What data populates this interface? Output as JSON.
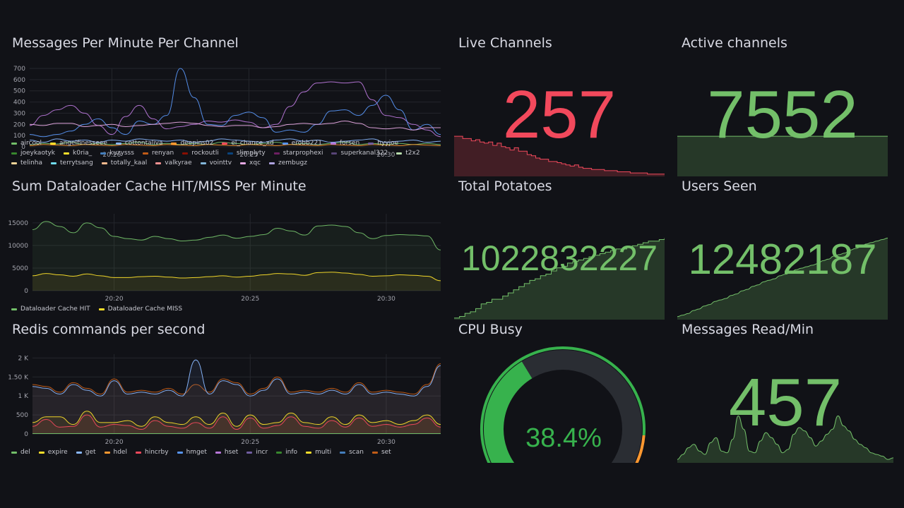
{
  "colors": {
    "green": "#73bf69",
    "red": "#f2495c",
    "gauge_bg": "#2a2d33",
    "gauge_green": "#37b24d",
    "gauge_orange": "#ff9830",
    "gauge_red": "#e02f44"
  },
  "panels": {
    "messages_per_minute": {
      "title": "Messages Per Minute Per Channel",
      "legend": [
        {
          "name": "aircool",
          "color": "#73bf69"
        },
        {
          "name": "angelfinesseee",
          "color": "#fade2a"
        },
        {
          "name": "cottontaliva",
          "color": "#8ab8ff"
        },
        {
          "name": "deepins02",
          "color": "#ff9830"
        },
        {
          "name": "el_chance_xd",
          "color": "#f2495c"
        },
        {
          "name": "erobb221",
          "color": "#5794f2"
        },
        {
          "name": "forsen",
          "color": "#b877d9"
        },
        {
          "name": "hyyjoe",
          "color": "#705da0"
        },
        {
          "name": "joeykaotyk",
          "color": "#37872d"
        },
        {
          "name": "k0ria_",
          "color": "#fade2a"
        },
        {
          "name": "kuzysss",
          "color": "#447ebc"
        },
        {
          "name": "renyan",
          "color": "#c15c17"
        },
        {
          "name": "rockoutli",
          "color": "#890f02"
        },
        {
          "name": "slimplyty",
          "color": "#0a437c"
        },
        {
          "name": "starprophexi",
          "color": "#6d1f62"
        },
        {
          "name": "superkanal322",
          "color": "#584477"
        },
        {
          "name": "t2x2",
          "color": "#b7dbab"
        },
        {
          "name": "telinha",
          "color": "#f4d598"
        },
        {
          "name": "terrytsang",
          "color": "#70dbed"
        },
        {
          "name": "totally_kaal",
          "color": "#f9ba8f"
        },
        {
          "name": "valkyrae",
          "color": "#f29191"
        },
        {
          "name": "vointtv",
          "color": "#82b5d8"
        },
        {
          "name": "xqc",
          "color": "#e5a8e2"
        },
        {
          "name": "zembugz",
          "color": "#aea2e0"
        }
      ]
    },
    "dataloader": {
      "title": "Sum Dataloader Cache HIT/MISS Per Minute",
      "legend": [
        {
          "name": "Dataloader Cache HIT",
          "color": "#73bf69"
        },
        {
          "name": "Dataloader Cache MISS",
          "color": "#fade2a"
        }
      ]
    },
    "redis": {
      "title": "Redis commands per second",
      "legend": [
        {
          "name": "del",
          "color": "#73bf69"
        },
        {
          "name": "expire",
          "color": "#fade2a"
        },
        {
          "name": "get",
          "color": "#8ab8ff"
        },
        {
          "name": "hdel",
          "color": "#ff9830"
        },
        {
          "name": "hincrby",
          "color": "#f2495c"
        },
        {
          "name": "hmget",
          "color": "#5794f2"
        },
        {
          "name": "hset",
          "color": "#b877d9"
        },
        {
          "name": "incr",
          "color": "#705da0"
        },
        {
          "name": "info",
          "color": "#37872d"
        },
        {
          "name": "multi",
          "color": "#fade2a"
        },
        {
          "name": "scan",
          "color": "#447ebc"
        },
        {
          "name": "set",
          "color": "#c15c17"
        }
      ]
    },
    "live_channels": {
      "title": "Live Channels",
      "value": "257",
      "spark": [
        70,
        70,
        66,
        66,
        62,
        64,
        60,
        58,
        60,
        54,
        58,
        52,
        50,
        46,
        50,
        44,
        44,
        38,
        36,
        32,
        30,
        30,
        26,
        26,
        24,
        22,
        20,
        18,
        20,
        16,
        14,
        14,
        12,
        12,
        12,
        10,
        10,
        10,
        8,
        8,
        8,
        6,
        6,
        6,
        6,
        4,
        4,
        4,
        4,
        4
      ]
    },
    "active_channels": {
      "title": "Active channels",
      "value": "7552",
      "spark": [
        96,
        96,
        96,
        96,
        96,
        96,
        96,
        96,
        96,
        96,
        96,
        96,
        96,
        96,
        96,
        96,
        96,
        96,
        96,
        96
      ]
    },
    "total_potatoes": {
      "title": "Total Potatoes",
      "value": "1022832227",
      "spark": [
        2,
        4,
        8,
        10,
        14,
        20,
        22,
        26,
        26,
        30,
        34,
        38,
        42,
        46,
        50,
        52,
        56,
        58,
        62,
        66,
        68,
        72,
        74,
        76,
        78,
        80,
        82,
        84,
        86,
        88,
        90,
        90,
        92,
        94,
        96,
        98,
        100,
        100,
        102,
        104
      ]
    },
    "users_seen": {
      "title": "Users Seen",
      "value": "12482187",
      "spark": [
        4,
        6,
        8,
        12,
        14,
        18,
        20,
        24,
        26,
        28,
        32,
        34,
        38,
        40,
        44,
        46,
        50,
        52,
        54,
        58,
        60,
        62,
        66,
        68,
        70,
        72,
        74,
        78,
        80,
        84,
        86,
        88,
        92,
        94,
        96,
        100,
        102,
        104,
        106,
        108
      ]
    },
    "cpu_busy": {
      "title": "CPU Busy",
      "value": "38.4%",
      "percent": 38.4
    },
    "messages_read": {
      "title": "Messages Read/Min",
      "value": "457",
      "spark": [
        4,
        10,
        18,
        22,
        14,
        10,
        24,
        30,
        14,
        12,
        28,
        56,
        40,
        14,
        12,
        26,
        36,
        30,
        22,
        12,
        16,
        34,
        42,
        38,
        30,
        20,
        26,
        34,
        40,
        56,
        44,
        38,
        28,
        22,
        18,
        12,
        10,
        8,
        4,
        6
      ]
    }
  },
  "chart_data": [
    {
      "type": "line",
      "title": "Messages Per Minute Per Channel",
      "ylim": [
        0,
        700
      ],
      "yticks": [
        "700",
        "600",
        "500",
        "400",
        "300",
        "200",
        "100",
        "0"
      ],
      "xticks": [
        {
          "t": 6,
          "label": "20:20"
        },
        {
          "t": 16,
          "label": "20:25"
        },
        {
          "t": 26,
          "label": "20:30"
        }
      ],
      "points": 31,
      "series": [
        {
          "name": "forsen",
          "color": "#b877d9",
          "values": [
            190,
            280,
            330,
            370,
            300,
            190,
            110,
            270,
            370,
            250,
            160,
            180,
            200,
            230,
            220,
            240,
            220,
            170,
            200,
            360,
            490,
            570,
            580,
            570,
            580,
            420,
            280,
            260,
            200,
            150,
            90
          ]
        },
        {
          "name": "erobb221",
          "color": "#5794f2",
          "values": [
            110,
            90,
            110,
            140,
            200,
            250,
            170,
            110,
            230,
            200,
            280,
            700,
            440,
            200,
            190,
            280,
            310,
            260,
            130,
            150,
            130,
            200,
            320,
            330,
            280,
            370,
            460,
            330,
            150,
            200,
            110
          ]
        },
        {
          "name": "xqc",
          "color": "#e5a8e2",
          "values": [
            200,
            190,
            210,
            210,
            180,
            190,
            200,
            180,
            190,
            200,
            210,
            220,
            210,
            190,
            180,
            190,
            190,
            170,
            180,
            200,
            210,
            200,
            210,
            230,
            210,
            170,
            160,
            170,
            150,
            170,
            170
          ]
        },
        {
          "name": "cottontaliva",
          "color": "#8ab8ff",
          "values": [
            60,
            40,
            70,
            50,
            60,
            40,
            60,
            50,
            70,
            60,
            50,
            60,
            40,
            50,
            70,
            60,
            50,
            40,
            60,
            70,
            50,
            60,
            40,
            50,
            60,
            70,
            40,
            50,
            60,
            40,
            50
          ]
        },
        {
          "name": "aircool",
          "color": "#73bf69",
          "values": [
            20,
            30,
            25,
            40,
            20,
            30,
            20,
            30,
            40,
            20,
            30,
            20,
            30,
            20,
            40,
            30,
            20,
            30,
            40,
            20,
            30,
            20,
            30,
            40,
            20,
            30,
            20,
            30,
            20,
            30,
            20
          ]
        },
        {
          "name": "deepins02",
          "color": "#ff9830",
          "values": [
            10,
            20,
            15,
            10,
            20,
            15,
            10,
            20,
            15,
            10,
            20,
            15,
            10,
            20,
            15,
            10,
            20,
            15,
            10,
            20,
            15,
            10,
            20,
            15,
            10,
            20,
            15,
            10,
            20,
            15,
            10
          ]
        }
      ]
    },
    {
      "type": "area",
      "title": "Sum Dataloader Cache HIT/MISS Per Minute",
      "ylim": [
        0,
        17000
      ],
      "yticks": [
        {
          "v": 15000,
          "label": "15000"
        },
        {
          "v": 10000,
          "label": "10000"
        },
        {
          "v": 5000,
          "label": "5000"
        },
        {
          "v": 0,
          "label": "0"
        }
      ],
      "xticks": [
        {
          "t": 6,
          "label": "20:20"
        },
        {
          "t": 16,
          "label": "20:25"
        },
        {
          "t": 26,
          "label": "20:30"
        }
      ],
      "points": 31,
      "series": [
        {
          "name": "Dataloader Cache HIT",
          "color": "#73bf69",
          "values": [
            13500,
            15300,
            14200,
            12800,
            15000,
            13900,
            12000,
            11500,
            11200,
            12000,
            11500,
            11000,
            11200,
            11800,
            12300,
            11600,
            12000,
            12400,
            13800,
            13200,
            12300,
            14300,
            14500,
            14200,
            12800,
            11500,
            12200,
            12400,
            12300,
            12100,
            9000
          ]
        },
        {
          "name": "Dataloader Cache MISS",
          "color": "#fade2a",
          "values": [
            3300,
            3800,
            3500,
            3200,
            3700,
            3300,
            2900,
            2900,
            3100,
            3200,
            3000,
            2800,
            2900,
            3100,
            3300,
            3000,
            3200,
            3500,
            3800,
            3700,
            3400,
            4000,
            4100,
            3900,
            3600,
            3200,
            3300,
            3500,
            3400,
            3200,
            2200
          ]
        }
      ]
    },
    {
      "type": "area",
      "title": "Redis commands per second",
      "ylim": [
        0,
        2100
      ],
      "yticks": [
        {
          "v": 2000,
          "label": "2 K"
        },
        {
          "v": 1500,
          "label": "1.50 K"
        },
        {
          "v": 1000,
          "label": "1 K"
        },
        {
          "v": 500,
          "label": "500"
        },
        {
          "v": 0,
          "label": "0"
        }
      ],
      "xticks": [
        {
          "t": 6,
          "label": "20:20"
        },
        {
          "t": 16,
          "label": "20:25"
        },
        {
          "t": 26,
          "label": "20:30"
        }
      ],
      "points": 31,
      "series": [
        {
          "name": "set",
          "color": "#c15c17",
          "values": [
            1300,
            1250,
            1100,
            1350,
            1200,
            1050,
            1450,
            1100,
            1150,
            1100,
            1200,
            1050,
            1300,
            1100,
            1450,
            1350,
            1050,
            1200,
            1500,
            1100,
            1150,
            1100,
            1200,
            1100,
            1350,
            1100,
            1150,
            1100,
            1050,
            1300,
            1850
          ]
        },
        {
          "name": "get",
          "color": "#8ab8ff",
          "values": [
            1250,
            1200,
            1050,
            1300,
            1150,
            1000,
            1400,
            1050,
            1100,
            1050,
            1150,
            1000,
            1950,
            1050,
            1400,
            1300,
            1000,
            1150,
            1450,
            1050,
            1100,
            1050,
            1150,
            1050,
            1300,
            1050,
            1100,
            1050,
            1000,
            1250,
            1800
          ]
        },
        {
          "name": "expire",
          "color": "#fade2a",
          "values": [
            300,
            450,
            450,
            250,
            600,
            300,
            300,
            350,
            200,
            450,
            300,
            250,
            450,
            250,
            550,
            200,
            500,
            250,
            300,
            550,
            300,
            250,
            450,
            250,
            500,
            300,
            350,
            250,
            350,
            500,
            250
          ]
        },
        {
          "name": "hincrby",
          "color": "#f2495c",
          "values": [
            200,
            380,
            180,
            200,
            500,
            180,
            250,
            220,
            120,
            350,
            200,
            150,
            300,
            150,
            450,
            120,
            420,
            150,
            220,
            450,
            200,
            150,
            350,
            180,
            420,
            200,
            250,
            180,
            250,
            420,
            180
          ]
        },
        {
          "name": "del",
          "color": "#73bf69",
          "values": [
            10,
            10,
            10,
            10,
            10,
            10,
            10,
            10,
            10,
            10,
            10,
            10,
            10,
            10,
            10,
            10,
            10,
            10,
            10,
            10,
            10,
            10,
            10,
            10,
            10,
            10,
            10,
            10,
            10,
            10,
            10
          ]
        }
      ]
    }
  ]
}
